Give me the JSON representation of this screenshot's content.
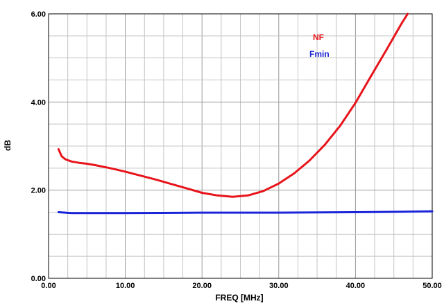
{
  "chart_data": {
    "type": "line",
    "xlabel": "FREQ [MHz]",
    "ylabel": "dB",
    "xlim": [
      0,
      50
    ],
    "ylim": [
      0,
      6
    ],
    "x_ticks": [
      "0.00",
      "10.00",
      "20.00",
      "30.00",
      "40.00",
      "50.00"
    ],
    "y_ticks": [
      "0.00",
      "2.00",
      "4.00",
      "6.00"
    ],
    "grid": true,
    "legend_position": "top-right",
    "series": [
      {
        "name": "NF",
        "color": "#e8141b",
        "x": [
          1.3,
          1.7,
          2.2,
          3.0,
          4.0,
          5.0,
          6.0,
          8.0,
          10.0,
          12.0,
          14.0,
          16.0,
          18.0,
          20.0,
          22.0,
          24.0,
          26.0,
          28.0,
          30.0,
          32.0,
          34.0,
          36.0,
          38.0,
          40.0,
          42.0,
          44.0,
          46.0,
          46.8
        ],
        "y": [
          2.93,
          2.77,
          2.7,
          2.65,
          2.62,
          2.6,
          2.57,
          2.5,
          2.42,
          2.33,
          2.24,
          2.14,
          2.04,
          1.94,
          1.88,
          1.85,
          1.88,
          1.98,
          2.15,
          2.38,
          2.67,
          3.03,
          3.46,
          3.98,
          4.58,
          5.17,
          5.78,
          6.0
        ]
      },
      {
        "name": "Fmin",
        "color": "#1a24d8",
        "x": [
          1.3,
          3.0,
          10.0,
          20.0,
          30.0,
          40.0,
          46.0,
          50.0
        ],
        "y": [
          1.5,
          1.48,
          1.48,
          1.49,
          1.49,
          1.5,
          1.51,
          1.52
        ]
      }
    ]
  }
}
